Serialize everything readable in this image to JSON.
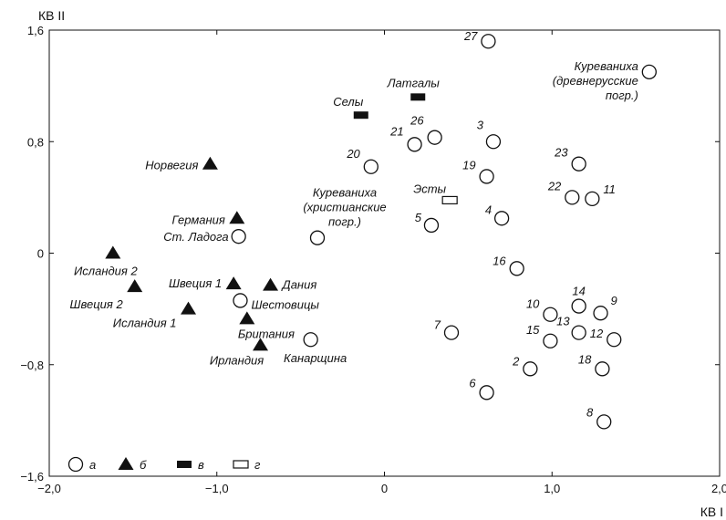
{
  "chart_data": {
    "type": "scatter",
    "xlabel": "КВ I",
    "ylabel": "КВ II",
    "xlim": [
      -2.0,
      2.0
    ],
    "ylim": [
      -1.6,
      1.6
    ],
    "xticks": [
      -2.0,
      -1.0,
      0,
      1.0,
      2.0
    ],
    "yticks": [
      -1.6,
      -0.8,
      0,
      0.8,
      1.6
    ],
    "xtick_labels": [
      "−2,0",
      "−1,0",
      "0",
      "1,0",
      "2,0"
    ],
    "ytick_labels": [
      "−1,6",
      "−0,8",
      "0",
      "0,8",
      "1,6"
    ],
    "grid": false,
    "marker_colors": {
      "stroke": "#111111",
      "fill_open": "#ffffff",
      "fill_solid": "#111111"
    },
    "series": [
      {
        "marker": "open-circle",
        "points": [
          {
            "label": "27",
            "x": 0.62,
            "y": 1.52
          },
          {
            "label": "26",
            "x": 0.3,
            "y": 0.83
          },
          {
            "label": "21",
            "x": 0.18,
            "y": 0.78
          },
          {
            "label": "3",
            "x": 0.65,
            "y": 0.8
          },
          {
            "label": "20",
            "x": -0.08,
            "y": 0.62
          },
          {
            "label": "19",
            "x": 0.61,
            "y": 0.55
          },
          {
            "label": "23",
            "x": 1.16,
            "y": 0.64
          },
          {
            "label": "22",
            "x": 1.12,
            "y": 0.4
          },
          {
            "label": "11",
            "x": 1.24,
            "y": 0.39
          },
          {
            "label": "4",
            "x": 0.7,
            "y": 0.25
          },
          {
            "label": "5",
            "x": 0.28,
            "y": 0.2
          },
          {
            "label": "16",
            "x": 0.79,
            "y": -0.11
          },
          {
            "label": "14",
            "x": 1.16,
            "y": -0.38
          },
          {
            "label": "10",
            "x": 0.99,
            "y": -0.44
          },
          {
            "label": "9",
            "x": 1.29,
            "y": -0.43
          },
          {
            "label": "13",
            "x": 1.16,
            "y": -0.57
          },
          {
            "label": "15",
            "x": 0.99,
            "y": -0.63
          },
          {
            "label": "12",
            "x": 1.37,
            "y": -0.62
          },
          {
            "label": "7",
            "x": 0.4,
            "y": -0.57
          },
          {
            "label": "2",
            "x": 0.87,
            "y": -0.83
          },
          {
            "label": "18",
            "x": 1.3,
            "y": -0.83
          },
          {
            "label": "6",
            "x": 0.61,
            "y": -1.0
          },
          {
            "label": "8",
            "x": 1.31,
            "y": -1.21
          },
          {
            "label": "Ст. Ладога",
            "x": -0.87,
            "y": 0.12
          },
          {
            "label": "Шестовицы",
            "x": -0.86,
            "y": -0.34
          },
          {
            "label": "Канарщина",
            "x": -0.44,
            "y": -0.62
          },
          {
            "label": "Куреваниха (христианские погр.)",
            "x": -0.4,
            "y": 0.11
          },
          {
            "label": "Куреваниха (древнерусские погр.)",
            "x": 1.58,
            "y": 1.3
          }
        ]
      },
      {
        "marker": "filled-triangle",
        "points": [
          {
            "label": "Норвегия",
            "x": -1.04,
            "y": 0.64
          },
          {
            "label": "Германия",
            "x": -0.88,
            "y": 0.25
          },
          {
            "label": "Исландия 2",
            "x": -1.62,
            "y": 0.0
          },
          {
            "label": "Швеция 1",
            "x": -0.9,
            "y": -0.22
          },
          {
            "label": "Дания",
            "x": -0.68,
            "y": -0.23
          },
          {
            "label": "Швеция 2",
            "x": -1.49,
            "y": -0.24
          },
          {
            "label": "Исландия 1",
            "x": -1.17,
            "y": -0.4
          },
          {
            "label": "Британия",
            "x": -0.82,
            "y": -0.47
          },
          {
            "label": "Ирландия",
            "x": -0.74,
            "y": -0.66
          }
        ]
      },
      {
        "marker": "filled-rect",
        "points": [
          {
            "label": "Селы",
            "x": -0.14,
            "y": 0.99
          },
          {
            "label": "Латгалы",
            "x": 0.2,
            "y": 1.12
          }
        ]
      },
      {
        "marker": "open-rect",
        "points": [
          {
            "label": "Эсты",
            "x": 0.39,
            "y": 0.38
          }
        ]
      }
    ],
    "legend": {
      "placement": "bottom-left",
      "entries": [
        {
          "marker": "open-circle",
          "label": "а"
        },
        {
          "marker": "filled-triangle",
          "label": "б"
        },
        {
          "marker": "filled-rect",
          "label": "в"
        },
        {
          "marker": "open-rect",
          "label": "г"
        }
      ]
    }
  }
}
